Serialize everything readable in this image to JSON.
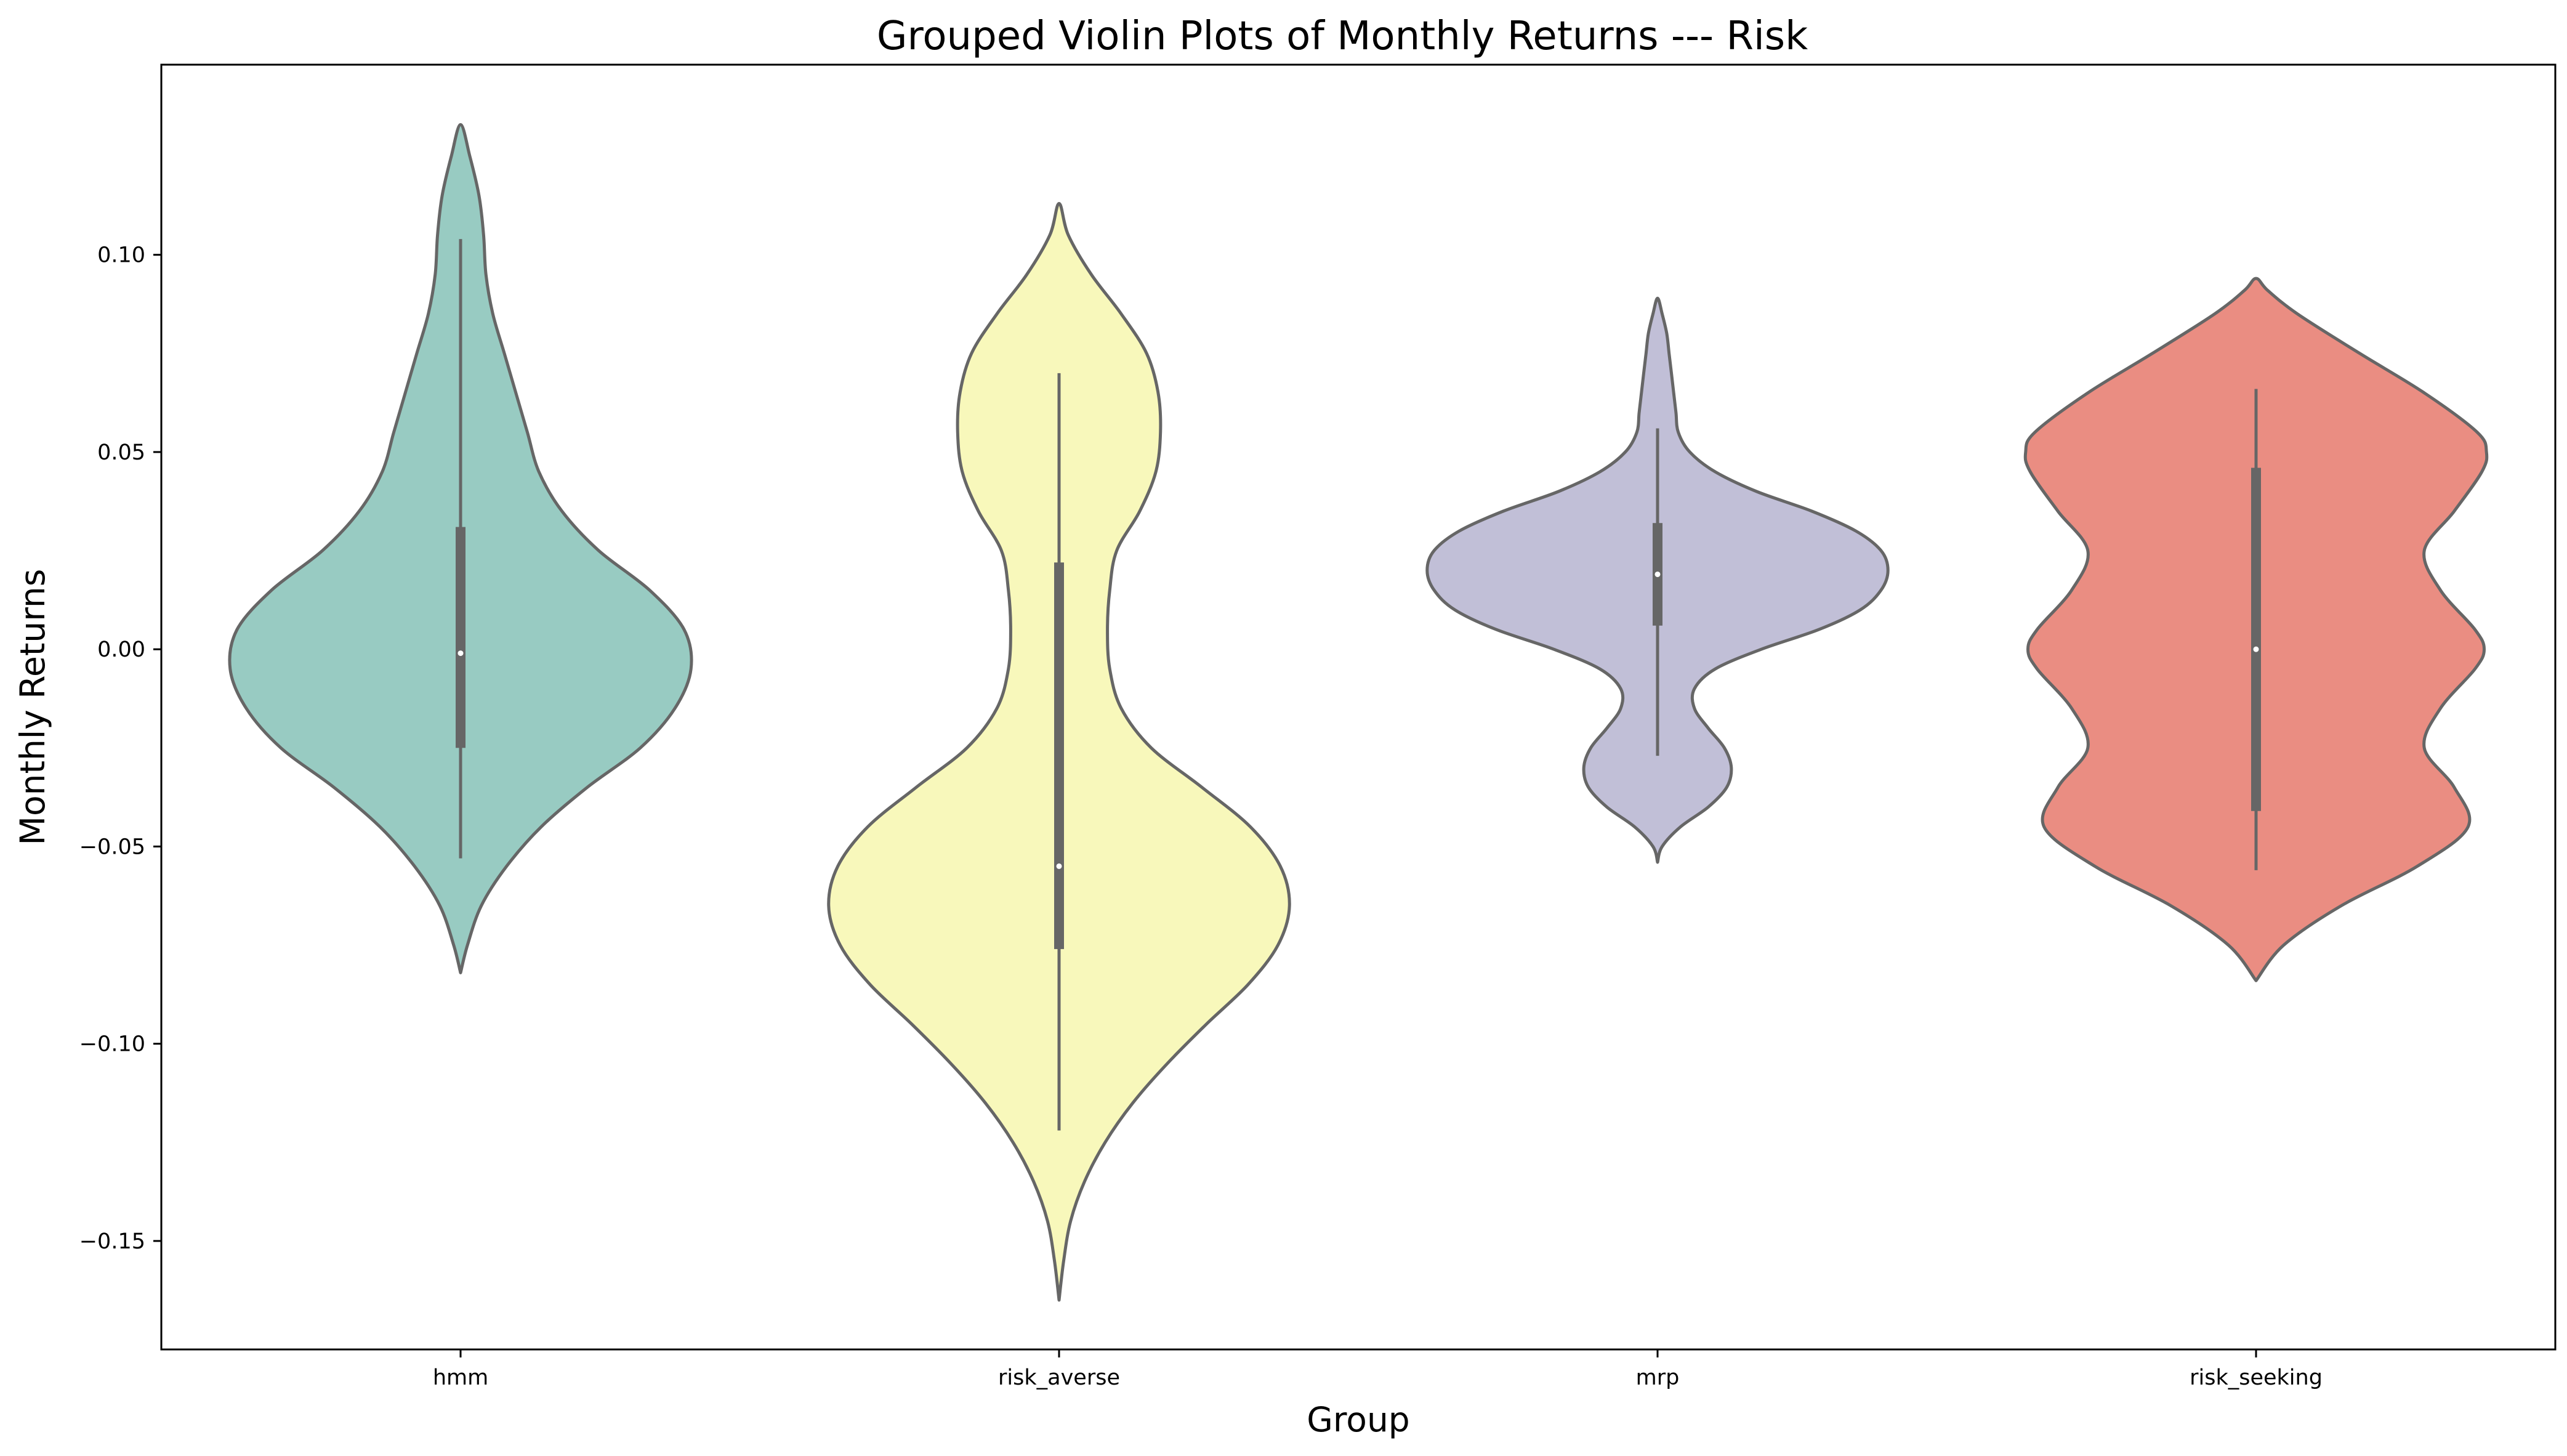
{
  "chart_data": {
    "type": "violin",
    "title": "Grouped Violin Plots of Monthly Returns --- Risk",
    "xlabel": "Group",
    "ylabel": "Monthly Returns",
    "ylim": [
      -0.1775,
      0.1482
    ],
    "yticks": [
      0.1,
      0.05,
      0.0,
      -0.05,
      -0.1,
      -0.15
    ],
    "ytick_labels": [
      "0.10",
      "0.05",
      "0.00",
      "−0.05",
      "−0.10",
      "−0.15"
    ],
    "grid": false,
    "categories": [
      "hmm",
      "risk_averse",
      "mrp",
      "risk_seeking"
    ],
    "colors": [
      "#98cbc2",
      "#f8f8bb",
      "#c1bfd7",
      "#ea8d82"
    ],
    "outline_color": "#666666",
    "groups": [
      {
        "name": "hmm",
        "whisker_low": -0.053,
        "q1": -0.025,
        "median": -0.001,
        "q3": 0.031,
        "whisker_high": 0.104,
        "profile": [
          [
            -0.082,
            0.0
          ],
          [
            -0.075,
            0.03
          ],
          [
            -0.065,
            0.09
          ],
          [
            -0.055,
            0.2
          ],
          [
            -0.045,
            0.35
          ],
          [
            -0.035,
            0.55
          ],
          [
            -0.025,
            0.78
          ],
          [
            -0.015,
            0.93
          ],
          [
            -0.005,
            1.0
          ],
          [
            0.005,
            0.97
          ],
          [
            0.015,
            0.82
          ],
          [
            0.025,
            0.6
          ],
          [
            0.035,
            0.44
          ],
          [
            0.045,
            0.34
          ],
          [
            0.055,
            0.29
          ],
          [
            0.065,
            0.24
          ],
          [
            0.075,
            0.19
          ],
          [
            0.085,
            0.14
          ],
          [
            0.095,
            0.11
          ],
          [
            0.105,
            0.1
          ],
          [
            0.115,
            0.08
          ],
          [
            0.125,
            0.04
          ],
          [
            0.133,
            0.0
          ]
        ]
      },
      {
        "name": "risk_averse",
        "whisker_low": -0.122,
        "q1": -0.076,
        "median": -0.055,
        "q3": 0.022,
        "whisker_high": 0.07,
        "profile": [
          [
            -0.165,
            0.0
          ],
          [
            -0.155,
            0.02
          ],
          [
            -0.145,
            0.05
          ],
          [
            -0.135,
            0.11
          ],
          [
            -0.125,
            0.2
          ],
          [
            -0.115,
            0.32
          ],
          [
            -0.105,
            0.47
          ],
          [
            -0.095,
            0.64
          ],
          [
            -0.085,
            0.82
          ],
          [
            -0.075,
            0.95
          ],
          [
            -0.065,
            1.0
          ],
          [
            -0.055,
            0.96
          ],
          [
            -0.045,
            0.83
          ],
          [
            -0.035,
            0.62
          ],
          [
            -0.025,
            0.4
          ],
          [
            -0.015,
            0.27
          ],
          [
            -0.005,
            0.22
          ],
          [
            0.005,
            0.21
          ],
          [
            0.015,
            0.22
          ],
          [
            0.025,
            0.25
          ],
          [
            0.035,
            0.35
          ],
          [
            0.045,
            0.42
          ],
          [
            0.055,
            0.44
          ],
          [
            0.065,
            0.43
          ],
          [
            0.075,
            0.38
          ],
          [
            0.085,
            0.27
          ],
          [
            0.095,
            0.14
          ],
          [
            0.105,
            0.04
          ],
          [
            0.113,
            0.0
          ]
        ]
      },
      {
        "name": "mrp",
        "whisker_low": -0.027,
        "q1": 0.006,
        "median": 0.019,
        "q3": 0.032,
        "whisker_high": 0.056,
        "profile": [
          [
            -0.054,
            0.0
          ],
          [
            -0.05,
            0.02
          ],
          [
            -0.045,
            0.1
          ],
          [
            -0.04,
            0.22
          ],
          [
            -0.035,
            0.3
          ],
          [
            -0.03,
            0.32
          ],
          [
            -0.025,
            0.29
          ],
          [
            -0.02,
            0.22
          ],
          [
            -0.015,
            0.16
          ],
          [
            -0.01,
            0.16
          ],
          [
            -0.005,
            0.25
          ],
          [
            0.0,
            0.45
          ],
          [
            0.005,
            0.7
          ],
          [
            0.01,
            0.88
          ],
          [
            0.015,
            0.97
          ],
          [
            0.02,
            1.0
          ],
          [
            0.025,
            0.97
          ],
          [
            0.03,
            0.86
          ],
          [
            0.035,
            0.67
          ],
          [
            0.04,
            0.43
          ],
          [
            0.045,
            0.25
          ],
          [
            0.05,
            0.14
          ],
          [
            0.055,
            0.09
          ],
          [
            0.06,
            0.08
          ],
          [
            0.065,
            0.07
          ],
          [
            0.07,
            0.06
          ],
          [
            0.075,
            0.05
          ],
          [
            0.08,
            0.04
          ],
          [
            0.085,
            0.02
          ],
          [
            0.089,
            0.0
          ]
        ]
      },
      {
        "name": "risk_seeking",
        "whisker_low": -0.056,
        "q1": -0.041,
        "median": 0.0,
        "q3": 0.046,
        "whisker_high": 0.066,
        "profile": [
          [
            -0.084,
            0.0
          ],
          [
            -0.075,
            0.12
          ],
          [
            -0.065,
            0.37
          ],
          [
            -0.055,
            0.7
          ],
          [
            -0.045,
            0.92
          ],
          [
            -0.035,
            0.86
          ],
          [
            -0.025,
            0.73
          ],
          [
            -0.015,
            0.8
          ],
          [
            -0.005,
            0.95
          ],
          [
            0.0,
            0.99
          ],
          [
            0.005,
            0.95
          ],
          [
            0.015,
            0.8
          ],
          [
            0.025,
            0.73
          ],
          [
            0.035,
            0.86
          ],
          [
            0.045,
            0.98
          ],
          [
            0.05,
            1.0
          ],
          [
            0.055,
            0.96
          ],
          [
            0.065,
            0.73
          ],
          [
            0.075,
            0.45
          ],
          [
            0.085,
            0.18
          ],
          [
            0.091,
            0.05
          ],
          [
            0.094,
            0.0
          ]
        ]
      }
    ]
  }
}
